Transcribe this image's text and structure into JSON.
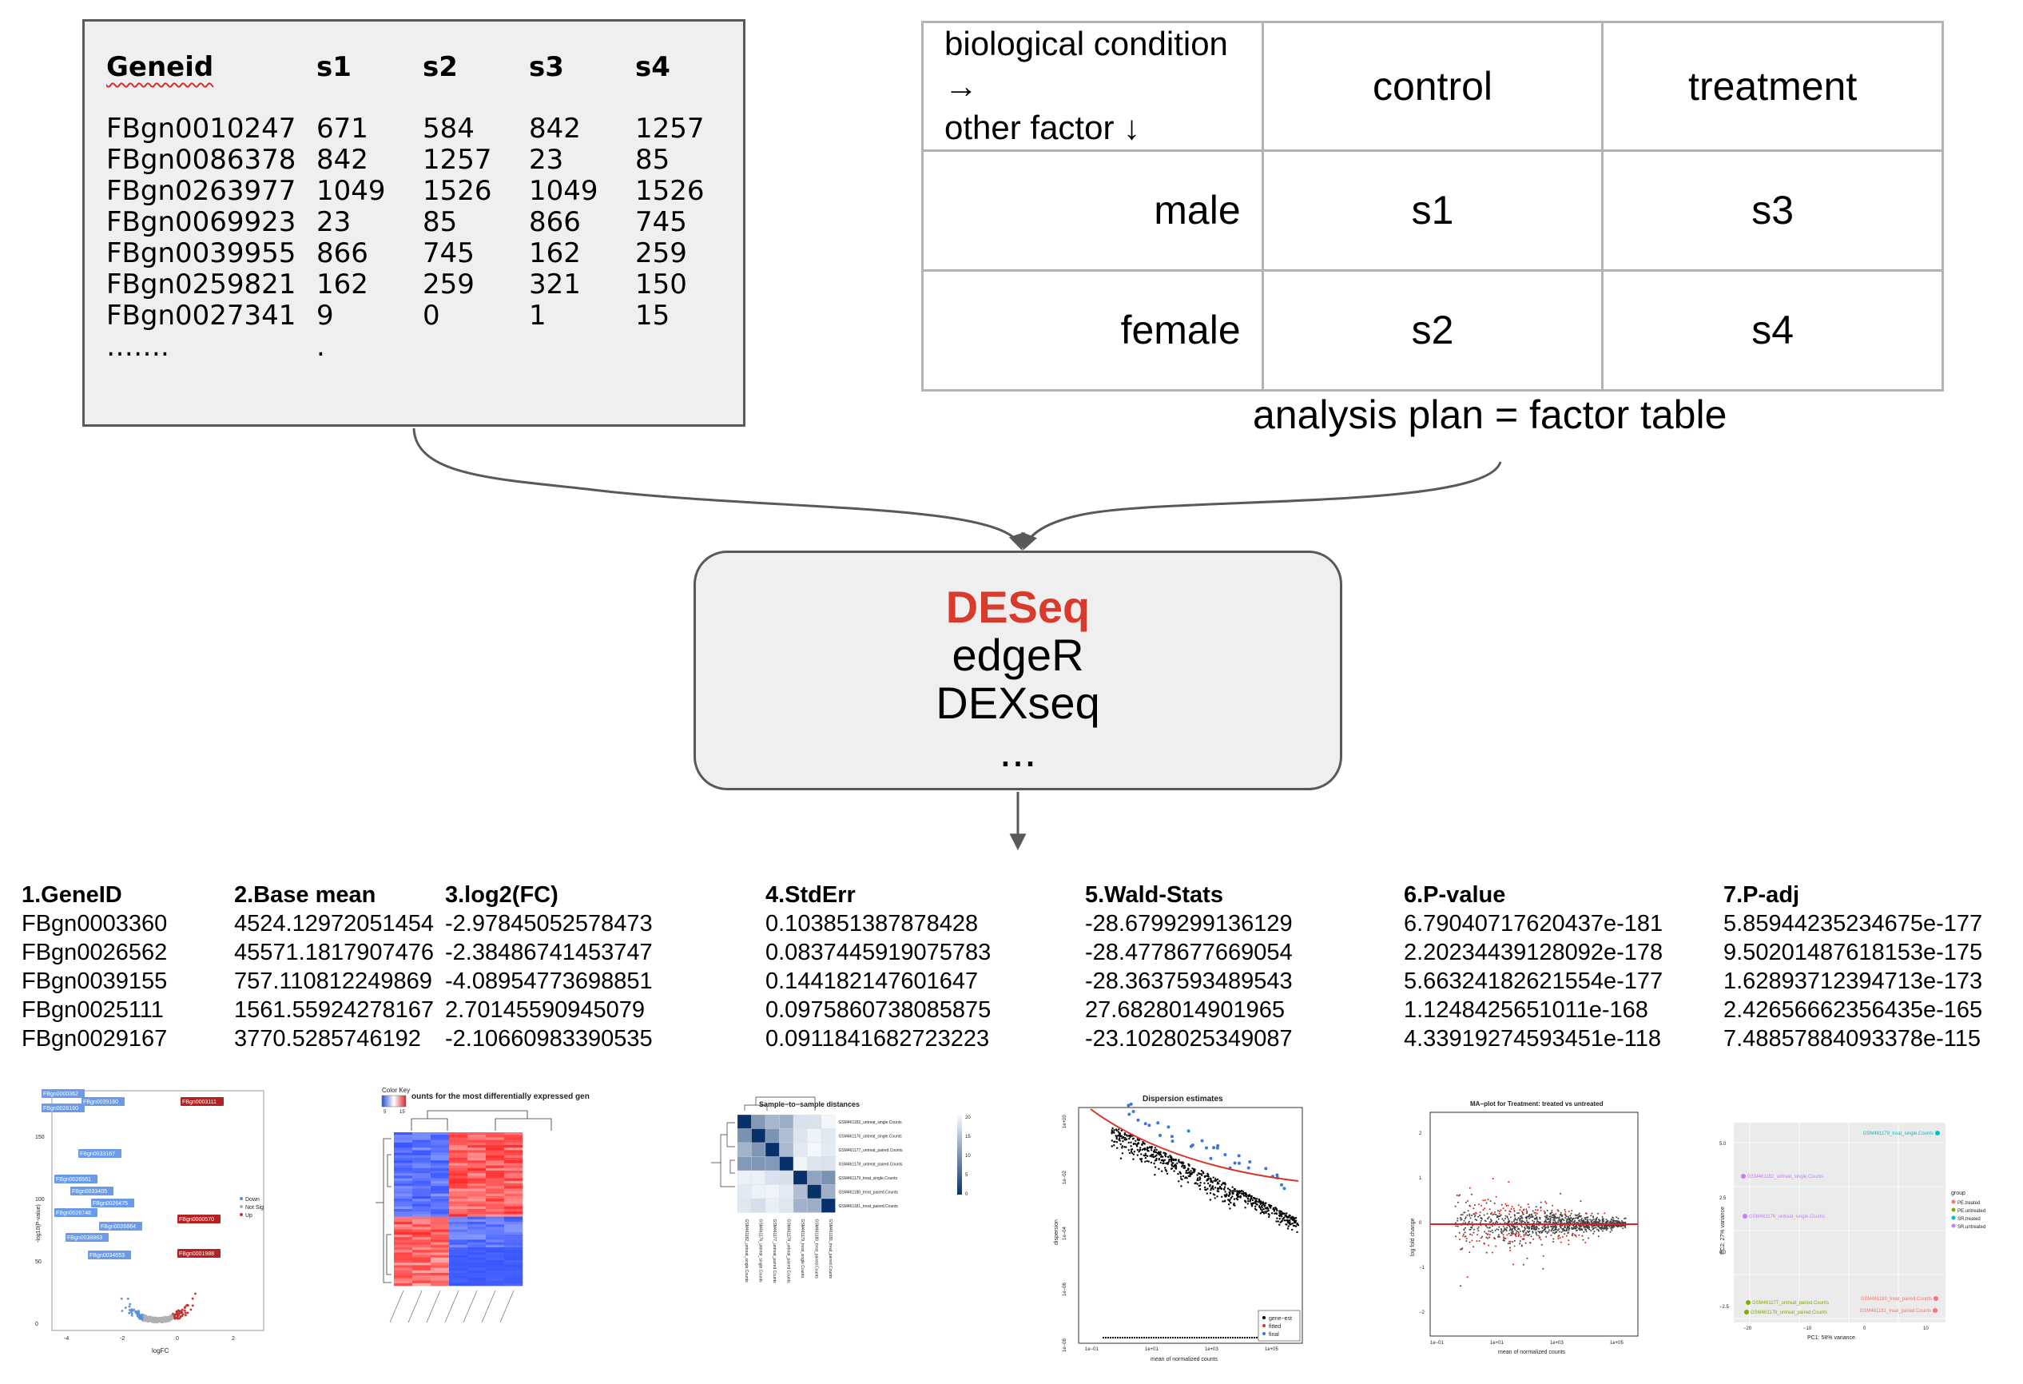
{
  "count_matrix": {
    "headers": [
      "Geneid",
      "s1",
      "s2",
      "s3",
      "s4"
    ],
    "rows": [
      [
        "FBgn0010247",
        "671",
        "584",
        "842",
        "1257"
      ],
      [
        "FBgn0086378",
        "842",
        "1257",
        "23",
        "85"
      ],
      [
        "FBgn0263977",
        "1049",
        "1526",
        "1049",
        "1526"
      ],
      [
        "FBgn0069923",
        "23",
        "85",
        "866",
        "745"
      ],
      [
        "FBgn0039955",
        "866",
        "745",
        "162",
        "259"
      ],
      [
        "FBgn0259821",
        "162",
        "259",
        "321",
        "150"
      ],
      [
        "FBgn0027341",
        "9",
        "0",
        "1",
        "15"
      ]
    ],
    "ellipsis": [
      "…….",
      "."
    ]
  },
  "factor_table": {
    "corner_line1": "biological condition →",
    "corner_line2": "other factor ↓",
    "columns": [
      "control",
      "treatment"
    ],
    "rows": [
      {
        "label": "male",
        "cells": [
          "s1",
          "s3"
        ]
      },
      {
        "label": "female",
        "cells": [
          "s2",
          "s4"
        ]
      }
    ],
    "caption": "analysis plan = factor table"
  },
  "tools": {
    "items": [
      "DESeq",
      "edgeR",
      "DEXseq",
      "..."
    ],
    "highlight_color": "#d83a2b"
  },
  "results": {
    "columns": [
      {
        "header": "1.GeneID",
        "values": [
          "FBgn0003360",
          "FBgn0026562",
          "FBgn0039155",
          "FBgn0025111",
          "FBgn0029167"
        ]
      },
      {
        "header": "2.Base mean",
        "values": [
          "4524.12972051454",
          "45571.1817907476",
          "757.110812249869",
          "1561.55924278167",
          "3770.5285746192"
        ]
      },
      {
        "header": "3.log2(FC)",
        "values": [
          "-2.97845052578473",
          "-2.38486741453747",
          "-4.08954773698851",
          "2.70145590945079",
          "-2.10660983390535"
        ]
      },
      {
        "header": "4.StdErr",
        "values": [
          "0.103851387878428",
          "0.0837445919075783",
          "0.144182147601647",
          "0.0975860738085875",
          "0.0911841682723223"
        ]
      },
      {
        "header": "5.Wald-Stats",
        "values": [
          "-28.6799299136129",
          "-28.4778677669054",
          "-28.3637593489543",
          "27.6828014901965",
          "-23.1028025349087"
        ]
      },
      {
        "header": "6.P-value",
        "values": [
          "6.79040717620437e-181",
          "2.20234439128092e-178",
          "5.66324182621554e-177",
          "1.1248425651011e-168",
          "4.33919274593451e-118"
        ]
      },
      {
        "header": "7.P-adj",
        "values": [
          "5.85944235234675e-177",
          "9.50201487618153e-175",
          "1.62893712394713e-173",
          "2.42656662356435e-165",
          "7.48857884093378e-115"
        ]
      }
    ]
  },
  "thumbnails": {
    "volcano": {
      "labels": [
        "FBgn0000362",
        "FBgn0026160",
        "FBgn0039160",
        "FBgn0003111",
        "FBgn0033167",
        "FBgn0026561",
        "FBgn0033405",
        "FBgn0026475",
        "FBgn0026748",
        "FBgn0026864",
        "FBgn0038863",
        "FBgn0034653",
        "FBgn0000570",
        "FBgn0001988"
      ],
      "legend": [
        "Down",
        "Not Sig",
        "Up"
      ],
      "xlabel": "logFC",
      "ylabel": "-log10(P-value)",
      "yticks": [
        "150",
        "100",
        "50",
        "0"
      ],
      "xticks": [
        "-4",
        "-2",
        "0",
        "2"
      ]
    },
    "heatmap": {
      "title": "ounts for the most differentially expressed gen",
      "color_key": "Color Key",
      "key_ticks": [
        "5",
        "15"
      ]
    },
    "distances": {
      "title": "Sample−to−sample distances",
      "samples": [
        "GSM461182_untreat_single.Counts",
        "GSM461176_untreat_single.Counts",
        "GSM461177_untreat_paired.Counts",
        "GSM461178_untreat_paired.Counts",
        "GSM461179_treat_single.Counts",
        "GSM461180_treat_paired.Counts",
        "GSM461181_treat_paired.Counts"
      ],
      "key_ticks": [
        "20",
        "15",
        "10",
        "5",
        "0"
      ]
    },
    "dispersion": {
      "title": "Dispersion estimates",
      "xlabel": "mean of normalized counts",
      "ylabel": "dispersion",
      "xticks": [
        "1e−01",
        "1e+01",
        "1e+03",
        "1e+05"
      ],
      "yticks": [
        "1e+00",
        "1e−02",
        "1e−04",
        "1e−06",
        "1e−08"
      ],
      "legend": [
        "gene−est",
        "fitted",
        "final"
      ],
      "colors": {
        "fit": "#d9342b",
        "final": "#3a78d8"
      }
    },
    "ma": {
      "title": "MA−plot for Treatment: treated vs untreated",
      "xlabel": "mean of normalized counts",
      "ylabel": "log fold change",
      "xticks": [
        "1e−01",
        "1e+01",
        "1e+03",
        "1e+05"
      ],
      "yticks": [
        "2",
        "1",
        "0",
        "−1",
        "−2"
      ]
    },
    "pca": {
      "xlabel": "PC1: 58% variance",
      "ylabel": "PC2: 27% variance",
      "legend_title": "group",
      "legend": [
        "PE.treated",
        "PE.untreated",
        "SR.treated",
        "SR.untreated"
      ],
      "colors": [
        "#f8766d",
        "#7cae00",
        "#00bfc4",
        "#c77cff"
      ],
      "points": [
        {
          "label": "GSM461179_treat_single.Counts",
          "g": 2
        },
        {
          "label": "GSM461182_untreat_single.Counts",
          "g": 3
        },
        {
          "label": "GSM461176_untreat_single.Counts",
          "g": 3
        },
        {
          "label": "GSM461180_treat_paired.Counts",
          "g": 0
        },
        {
          "label": "GSM461181_treat_paired.Counts",
          "g": 0
        },
        {
          "label": "GSM461177_untreat_paired.Counts",
          "g": 1
        },
        {
          "label": "GSM461178_untreat_paired.Counts",
          "g": 1
        }
      ],
      "xticks": [
        "−20",
        "−10",
        "0",
        "10"
      ],
      "yticks": [
        "5.0",
        "2.5",
        "0.0",
        "−2.5"
      ]
    }
  }
}
